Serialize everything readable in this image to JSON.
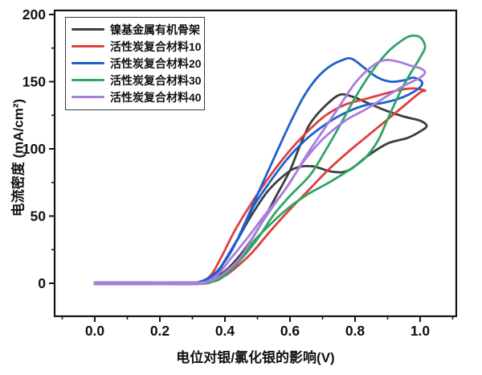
{
  "chart_data": {
    "type": "line",
    "subtype": "cyclic-voltammetry-loops",
    "title": "",
    "xlabel": "电位对银/氯化银的影响(V)",
    "ylabel": "电流密度 (mA/cm²)",
    "xlim": [
      -0.12,
      1.11
    ],
    "ylim": [
      -25,
      203
    ],
    "x_ticks": [
      0.0,
      0.2,
      0.4,
      0.6,
      0.8,
      1.0
    ],
    "x_tick_labels": [
      "0.0",
      "0.2",
      "0.4",
      "0.6",
      "0.8",
      "1.0"
    ],
    "x_minor_ticks": [
      -0.1,
      0.1,
      0.3,
      0.5,
      0.7,
      0.9,
      1.1
    ],
    "y_ticks": [
      0,
      50,
      100,
      150,
      200
    ],
    "y_tick_labels": [
      "0",
      "50",
      "100",
      "150",
      "200"
    ],
    "y_minor_ticks": [
      25,
      75,
      125,
      175
    ],
    "grid": false,
    "legend_position": "top-left",
    "axis_color": "#141414",
    "series": [
      {
        "name": "镍基金属有机骨架",
        "color": "#3d3d3d",
        "points": [
          [
            0.0,
            0.5
          ],
          [
            0.15,
            0.5
          ],
          [
            0.3,
            0.5
          ],
          [
            0.33,
            1
          ],
          [
            0.36,
            3
          ],
          [
            0.4,
            9
          ],
          [
            0.44,
            19
          ],
          [
            0.48,
            32
          ],
          [
            0.52,
            48
          ],
          [
            0.56,
            66
          ],
          [
            0.6,
            84
          ],
          [
            0.63,
            102
          ],
          [
            0.66,
            118
          ],
          [
            0.7,
            130
          ],
          [
            0.75,
            140
          ],
          [
            0.79,
            139
          ],
          [
            0.84,
            134
          ],
          [
            0.9,
            128
          ],
          [
            0.95,
            124
          ],
          [
            1.0,
            121
          ],
          [
            1.02,
            117
          ],
          [
            1.0,
            113
          ],
          [
            0.96,
            108
          ],
          [
            0.9,
            104
          ],
          [
            0.84,
            95
          ],
          [
            0.78,
            84
          ],
          [
            0.73,
            83
          ],
          [
            0.67,
            87
          ],
          [
            0.62,
            86
          ],
          [
            0.58,
            80
          ],
          [
            0.53,
            68
          ],
          [
            0.48,
            50
          ],
          [
            0.44,
            33
          ],
          [
            0.4,
            17
          ],
          [
            0.37,
            6
          ],
          [
            0.34,
            1
          ],
          [
            0.31,
            -0.5
          ],
          [
            0.15,
            -0.5
          ],
          [
            0.0,
            -0.5
          ]
        ]
      },
      {
        "name": "活性炭复合材料10",
        "color": "#dd3f3f",
        "points": [
          [
            0.0,
            0.5
          ],
          [
            0.15,
            0.5
          ],
          [
            0.31,
            0.5
          ],
          [
            0.34,
            1
          ],
          [
            0.38,
            3
          ],
          [
            0.42,
            9
          ],
          [
            0.48,
            22
          ],
          [
            0.54,
            39
          ],
          [
            0.6,
            55
          ],
          [
            0.66,
            70
          ],
          [
            0.72,
            85
          ],
          [
            0.78,
            98
          ],
          [
            0.84,
            110
          ],
          [
            0.9,
            122
          ],
          [
            0.95,
            132
          ],
          [
            1.0,
            142
          ],
          [
            1.015,
            143.5
          ],
          [
            0.98,
            145
          ],
          [
            0.94,
            144
          ],
          [
            0.89,
            141
          ],
          [
            0.83,
            137
          ],
          [
            0.77,
            133
          ],
          [
            0.71,
            125
          ],
          [
            0.65,
            112
          ],
          [
            0.59,
            96
          ],
          [
            0.53,
            77
          ],
          [
            0.48,
            59
          ],
          [
            0.43,
            39
          ],
          [
            0.39,
            20
          ],
          [
            0.36,
            7
          ],
          [
            0.33,
            1
          ],
          [
            0.3,
            -0.5
          ],
          [
            0.15,
            -0.5
          ],
          [
            0.0,
            -0.5
          ]
        ]
      },
      {
        "name": "活性炭复合材料20",
        "color": "#1d60cc",
        "points": [
          [
            0.0,
            0.5
          ],
          [
            0.15,
            0.5
          ],
          [
            0.29,
            0.5
          ],
          [
            0.32,
            1
          ],
          [
            0.35,
            4
          ],
          [
            0.38,
            10
          ],
          [
            0.42,
            24
          ],
          [
            0.46,
            44
          ],
          [
            0.5,
            66
          ],
          [
            0.53,
            82
          ],
          [
            0.56,
            98
          ],
          [
            0.6,
            119
          ],
          [
            0.64,
            138
          ],
          [
            0.68,
            152
          ],
          [
            0.72,
            161
          ],
          [
            0.76,
            166
          ],
          [
            0.79,
            167
          ],
          [
            0.83,
            160
          ],
          [
            0.87,
            153
          ],
          [
            0.91,
            150
          ],
          [
            0.95,
            151
          ],
          [
            0.98,
            153
          ],
          [
            1.005,
            150
          ],
          [
            1.0,
            146
          ],
          [
            0.97,
            141
          ],
          [
            0.93,
            137
          ],
          [
            0.88,
            134
          ],
          [
            0.84,
            133
          ],
          [
            0.79,
            129
          ],
          [
            0.74,
            123
          ],
          [
            0.69,
            115
          ],
          [
            0.64,
            105
          ],
          [
            0.59,
            92
          ],
          [
            0.54,
            76
          ],
          [
            0.49,
            58
          ],
          [
            0.45,
            38
          ],
          [
            0.41,
            21
          ],
          [
            0.38,
            9
          ],
          [
            0.35,
            3
          ],
          [
            0.31,
            -0.5
          ],
          [
            0.15,
            -0.5
          ],
          [
            0.0,
            -0.5
          ]
        ]
      },
      {
        "name": "活性炭复合材料30",
        "color": "#2fa566",
        "points": [
          [
            0.0,
            0.5
          ],
          [
            0.15,
            0.5
          ],
          [
            0.32,
            0.5
          ],
          [
            0.35,
            1
          ],
          [
            0.38,
            3
          ],
          [
            0.41,
            8
          ],
          [
            0.45,
            18
          ],
          [
            0.5,
            33
          ],
          [
            0.55,
            51
          ],
          [
            0.6,
            65
          ],
          [
            0.66,
            80
          ],
          [
            0.7,
            95
          ],
          [
            0.75,
            116
          ],
          [
            0.8,
            138
          ],
          [
            0.85,
            157
          ],
          [
            0.9,
            172
          ],
          [
            0.94,
            180
          ],
          [
            0.97,
            184
          ],
          [
            1.0,
            183
          ],
          [
            1.015,
            176
          ],
          [
            1.0,
            168
          ],
          [
            0.97,
            156
          ],
          [
            0.94,
            143
          ],
          [
            0.9,
            122
          ],
          [
            0.87,
            106
          ],
          [
            0.83,
            93
          ],
          [
            0.78,
            84
          ],
          [
            0.72,
            75
          ],
          [
            0.66,
            67
          ],
          [
            0.6,
            57
          ],
          [
            0.54,
            44
          ],
          [
            0.48,
            29
          ],
          [
            0.43,
            13
          ],
          [
            0.39,
            4
          ],
          [
            0.36,
            1
          ],
          [
            0.32,
            -0.5
          ],
          [
            0.15,
            -0.5
          ],
          [
            0.0,
            -0.5
          ]
        ]
      },
      {
        "name": "活性炭复合材料40",
        "color": "#a97ddb",
        "points": [
          [
            0.0,
            0.5
          ],
          [
            0.15,
            0.5
          ],
          [
            0.31,
            0.5
          ],
          [
            0.34,
            1
          ],
          [
            0.37,
            3
          ],
          [
            0.41,
            10
          ],
          [
            0.45,
            20
          ],
          [
            0.5,
            40
          ],
          [
            0.55,
            58
          ],
          [
            0.6,
            75
          ],
          [
            0.65,
            95
          ],
          [
            0.7,
            113
          ],
          [
            0.75,
            131
          ],
          [
            0.8,
            149
          ],
          [
            0.85,
            161
          ],
          [
            0.89,
            166
          ],
          [
            0.93,
            165
          ],
          [
            0.97,
            162
          ],
          [
            1.0,
            160
          ],
          [
            1.015,
            157
          ],
          [
            1.0,
            153
          ],
          [
            0.95,
            147
          ],
          [
            0.89,
            138
          ],
          [
            0.83,
            129
          ],
          [
            0.77,
            121
          ],
          [
            0.7,
            107
          ],
          [
            0.64,
            90
          ],
          [
            0.58,
            68
          ],
          [
            0.52,
            50
          ],
          [
            0.47,
            34
          ],
          [
            0.42,
            19
          ],
          [
            0.38,
            7
          ],
          [
            0.35,
            2
          ],
          [
            0.32,
            -0.5
          ],
          [
            0.15,
            -0.5
          ],
          [
            0.0,
            -0.5
          ]
        ]
      }
    ]
  }
}
